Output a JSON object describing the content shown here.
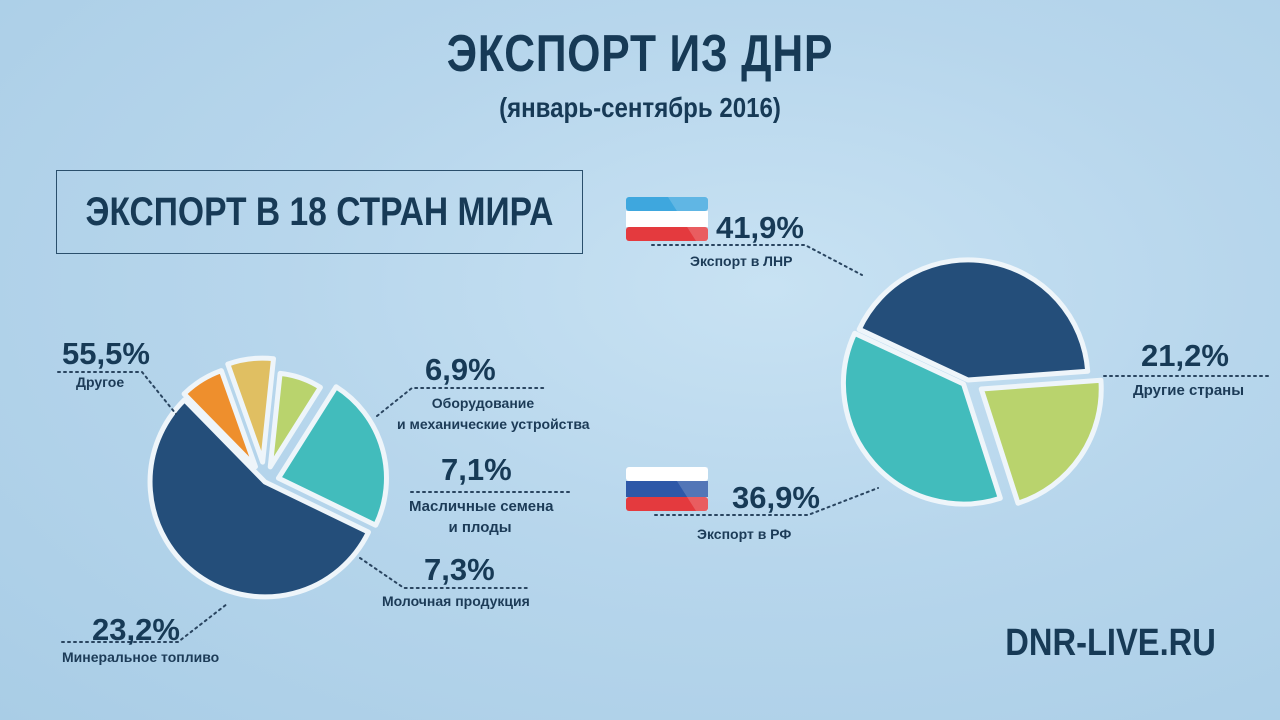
{
  "title": "ЭКСПОРТ ИЗ ДНР",
  "subtitle": "(январь-сентябрь 2016)",
  "box_label": "ЭКСПОРТ В 18 СТРАН МИРА",
  "brand": "DNR-LIVE.RU",
  "colors": {
    "dark_blue": "#244e7a",
    "orange": "#ee8f2d",
    "sand": "#e0bf62",
    "light_green": "#b9d36d",
    "teal": "#42bcbc",
    "text": "#173a56"
  },
  "chart_data": [
    {
      "type": "pie",
      "title": "ЭКСПОРТ В 18 СТРАН МИРА",
      "slices": [
        {
          "label": "Другое",
          "value": 55.5,
          "display": "55,5%",
          "color": "#244e7a"
        },
        {
          "label": "Оборудование и механические устройства",
          "value": 6.9,
          "display": "6,9%",
          "color": "#ee8f2d"
        },
        {
          "label": "Масличные семена и плоды",
          "value": 7.1,
          "display": "7,1%",
          "color": "#e0bf62"
        },
        {
          "label": "Молочная продукция",
          "value": 7.3,
          "display": "7,3%",
          "color": "#b9d36d"
        },
        {
          "label": "Минеральное топливо",
          "value": 23.2,
          "display": "23,2%",
          "color": "#42bcbc"
        }
      ]
    },
    {
      "type": "pie",
      "slices": [
        {
          "label": "Экспорт в ЛНР",
          "value": 41.9,
          "display": "41,9%",
          "color": "#244e7a",
          "icon": "lnr-flag-icon"
        },
        {
          "label": "Другие страны",
          "value": 21.2,
          "display": "21,2%",
          "color": "#b9d36d"
        },
        {
          "label": "Экспорт в РФ",
          "value": 36.9,
          "display": "36,9%",
          "color": "#42bcbc",
          "icon": "russia-flag-icon"
        }
      ]
    }
  ],
  "labels": {
    "left": {
      "other_pct": "55,5%",
      "other": "Другое",
      "equip_pct": "6,9%",
      "equip_1": "Оборудование",
      "equip_2": "и механические устройства",
      "seeds_pct": "7,1%",
      "seeds_1": "Масличные семена",
      "seeds_2": "и плоды",
      "dairy_pct": "7,3%",
      "dairy": "Молочная продукция",
      "fuel_pct": "23,2%",
      "fuel": "Минеральное топливо"
    },
    "right": {
      "lnr_pct": "41,9%",
      "lnr": "Экспорт в ЛНР",
      "other_pct": "21,2%",
      "other": "Другие страны",
      "rf_pct": "36,9%",
      "rf": "Экспорт в РФ"
    }
  }
}
